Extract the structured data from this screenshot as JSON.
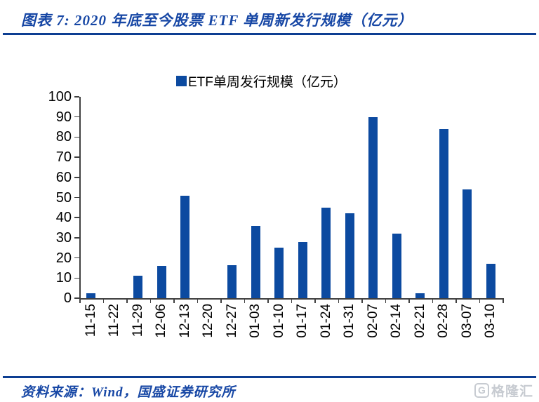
{
  "figure": {
    "title": "图表 7:  2020 年底至今股票 ETF 单周新发行规模（亿元）",
    "source": "资料来源：Wind，国盛证券研究所",
    "watermark": {
      "icon": "gelonghui-logo",
      "text": "格隆汇"
    }
  },
  "chart_data": {
    "type": "bar",
    "title": "",
    "legend": [
      {
        "label": "ETF单周发行规模（亿元）",
        "color": "#0C4AA0"
      }
    ],
    "legend_position": "top-center",
    "categories": [
      "11-15",
      "11-22",
      "11-29",
      "12-06",
      "12-13",
      "12-20",
      "12-27",
      "01-03",
      "01-10",
      "01-17",
      "01-24",
      "01-31",
      "02-07",
      "02-14",
      "02-21",
      "02-28",
      "03-07",
      "03-10"
    ],
    "values": [
      2.5,
      0,
      11,
      16,
      51,
      0,
      16.5,
      36,
      25,
      28,
      45,
      42,
      90,
      32,
      2.5,
      84,
      54,
      17
    ],
    "xlabel": "",
    "ylabel": "",
    "ylim": [
      0,
      100
    ],
    "yticks": [
      0,
      10,
      20,
      30,
      40,
      50,
      60,
      70,
      80,
      90,
      100
    ],
    "grid": false,
    "bar_color": "#0C4AA0",
    "axis_color": "#404040"
  },
  "colors": {
    "accent_blue": "#1747A5",
    "rule_blue": "#0D3E92",
    "bar_blue": "#0C4AA0",
    "watermark_gray": "#C7CBD1"
  }
}
